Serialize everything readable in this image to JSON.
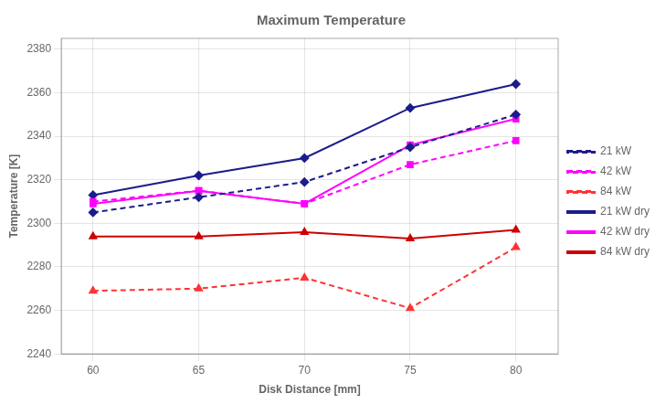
{
  "chart_data": {
    "type": "line",
    "title": "Maximum Temperature",
    "xlabel": "Disk Distance [mm]",
    "ylabel": "Temperature [K]",
    "x": [
      60,
      65,
      70,
      75,
      80
    ],
    "series": [
      {
        "name": "21 kW",
        "color": "#1C1C8C",
        "values": [
          2305,
          2312,
          2319,
          2335,
          2350
        ],
        "marker": "diamond",
        "line_style": "dashed"
      },
      {
        "name": "42 kW",
        "color": "#FF00FF",
        "values": [
          2310,
          2315,
          2309,
          2327,
          2338
        ],
        "marker": "square",
        "line_style": "dashed"
      },
      {
        "name": "84 kW",
        "color": "#FF3333",
        "values": [
          2269,
          2270,
          2275,
          2261,
          2289
        ],
        "marker": "triangle",
        "line_style": "dashed"
      },
      {
        "name": "21 kW dry",
        "color": "#1C1C8C",
        "values": [
          2313,
          2322,
          2330,
          2353,
          2364
        ],
        "marker": "diamond",
        "line_style": "solid"
      },
      {
        "name": "42 kW dry",
        "color": "#FF00FF",
        "values": [
          2309,
          2315,
          2309,
          2336,
          2348
        ],
        "marker": "square",
        "line_style": "solid"
      },
      {
        "name": "84 kW dry",
        "color": "#CC0000",
        "values": [
          2294,
          2294,
          2296,
          2293,
          2297
        ],
        "marker": "triangle",
        "line_style": "solid"
      }
    ],
    "xlim": [
      58.5,
      82
    ],
    "ylim": [
      2240,
      2385
    ],
    "xticks": [
      60,
      65,
      70,
      75,
      80
    ],
    "yticks": [
      2240,
      2260,
      2280,
      2300,
      2320,
      2340,
      2360,
      2380
    ],
    "grid": true,
    "legend": "right"
  }
}
